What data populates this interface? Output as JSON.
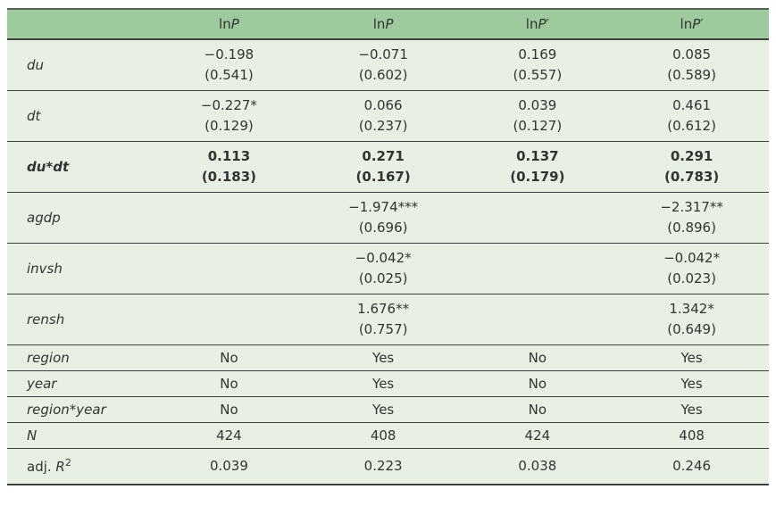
{
  "colors": {
    "header_bg": "#9ecb9d",
    "body_bg": "#e7f0e3",
    "border": "#3f3f3f",
    "text": "#333333",
    "page_bg": "#ffffff"
  },
  "table": {
    "header": {
      "corner": "",
      "cols": [
        {
          "fn": "ln",
          "sym": "P",
          "prime": ""
        },
        {
          "fn": "ln",
          "sym": "P",
          "prime": ""
        },
        {
          "fn": "ln",
          "sym": "P",
          "prime": "′"
        },
        {
          "fn": "ln",
          "sym": "P",
          "prime": "′"
        }
      ]
    },
    "rows": [
      {
        "label": "du",
        "cells": [
          {
            "coef": "−0.198",
            "se": "(0.541)"
          },
          {
            "coef": "−0.071",
            "se": "(0.602)"
          },
          {
            "coef": "0.169",
            "se": "(0.557)"
          },
          {
            "coef": "0.085",
            "se": "(0.589)"
          }
        ]
      },
      {
        "label": "dt",
        "cells": [
          {
            "coef": "−0.227*",
            "se": "(0.129)"
          },
          {
            "coef": "0.066",
            "se": "(0.237)"
          },
          {
            "coef": "0.039",
            "se": "(0.127)"
          },
          {
            "coef": "0.461",
            "se": "(0.612)"
          }
        ]
      },
      {
        "label": "du*dt",
        "cells": [
          {
            "coef": "0.113",
            "se": "(0.183)"
          },
          {
            "coef": "0.271",
            "se": "(0.167)"
          },
          {
            "coef": "0.137",
            "se": "(0.179)"
          },
          {
            "coef": "0.291",
            "se": "(0.783)"
          }
        ]
      },
      {
        "label": "agdp",
        "cells": [
          {
            "coef": "",
            "se": ""
          },
          {
            "coef": "−1.974***",
            "se": "(0.696)"
          },
          {
            "coef": "",
            "se": ""
          },
          {
            "coef": "−2.317**",
            "se": "(0.896)"
          }
        ]
      },
      {
        "label": "invsh",
        "cells": [
          {
            "coef": "",
            "se": ""
          },
          {
            "coef": "−0.042*",
            "se": "(0.025)"
          },
          {
            "coef": "",
            "se": ""
          },
          {
            "coef": "−0.042*",
            "se": "(0.023)"
          }
        ]
      },
      {
        "label": "rensh",
        "cells": [
          {
            "coef": "",
            "se": ""
          },
          {
            "coef": "1.676**",
            "se": "(0.757)"
          },
          {
            "coef": "",
            "se": ""
          },
          {
            "coef": "1.342*",
            "se": "(0.649)"
          }
        ]
      },
      {
        "label": "region",
        "values": [
          "No",
          "Yes",
          "No",
          "Yes"
        ]
      },
      {
        "label": "year",
        "values": [
          "No",
          "Yes",
          "No",
          "Yes"
        ]
      },
      {
        "label": "region*year",
        "values": [
          "No",
          "Yes",
          "No",
          "Yes"
        ]
      },
      {
        "label": "N",
        "values": [
          "424",
          "408",
          "424",
          "408"
        ]
      },
      {
        "label_prefix": "adj. ",
        "label_sym": "R",
        "label_sup": "2",
        "values": [
          "0.039",
          "0.223",
          "0.038",
          "0.246"
        ]
      }
    ]
  }
}
